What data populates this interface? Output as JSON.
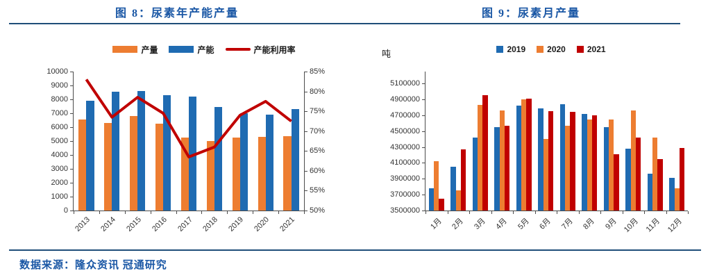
{
  "footer": {
    "source_text": "数据来源：隆众资讯 冠通研究"
  },
  "colors": {
    "production_orange": "#ED7D31",
    "capacity_blue": "#1F6BB2",
    "utilization_red": "#C00000",
    "rule_dark_blue": "#1F4E79",
    "title_blue": "#1A57A5"
  },
  "chart_data": [
    {
      "id": "figure8",
      "type": "bar+line",
      "title": "图 8：尿素年产能产量",
      "categories": [
        "2013",
        "2014",
        "2015",
        "2016",
        "2017",
        "2018",
        "2019",
        "2020",
        "2021"
      ],
      "series": [
        {
          "name": "产量",
          "kind": "bar",
          "axis": "left",
          "color": "#ED7D31",
          "values": [
            6550,
            6300,
            6800,
            6250,
            5250,
            5000,
            5250,
            5300,
            5350
          ]
        },
        {
          "name": "产能",
          "kind": "bar",
          "axis": "left",
          "color": "#1F6BB2",
          "values": [
            7900,
            8550,
            8600,
            8300,
            8200,
            7450,
            7000,
            6900,
            7300
          ]
        },
        {
          "name": "产能利用率",
          "kind": "line",
          "axis": "right",
          "color": "#C00000",
          "values": [
            83,
            73.5,
            78.5,
            74.5,
            63.5,
            66,
            74,
            77.5,
            72.5
          ]
        }
      ],
      "left_axis": {
        "min": 0,
        "max": 10000,
        "step": 1000
      },
      "right_axis": {
        "min": 50,
        "max": 85,
        "step": 5,
        "format": "percent"
      },
      "legend_position": "top",
      "gridlines": false,
      "bar_width_ratio": 0.3,
      "legend_swatch": "rect"
    },
    {
      "id": "figure9",
      "type": "bar",
      "title": "图 9：尿素月产量",
      "unit": "吨",
      "categories": [
        "1月",
        "2月",
        "3月",
        "4月",
        "5月",
        "6月",
        "7月",
        "8月",
        "9月",
        "10月",
        "11月",
        "12月"
      ],
      "series": [
        {
          "name": "2019",
          "kind": "bar",
          "axis": "left",
          "color": "#1F6BB2",
          "values": [
            3780000,
            4050000,
            4420000,
            4550000,
            4820000,
            4790000,
            4840000,
            4720000,
            4550000,
            4280000,
            3960000,
            3910000
          ]
        },
        {
          "name": "2020",
          "kind": "bar",
          "axis": "left",
          "color": "#ED7D31",
          "values": [
            4120000,
            3750000,
            4830000,
            4760000,
            4900000,
            4400000,
            4570000,
            4650000,
            4650000,
            4760000,
            4420000,
            3780000
          ]
        },
        {
          "name": "2021",
          "kind": "bar",
          "axis": "left",
          "color": "#C00000",
          "values": [
            3650000,
            4270000,
            4950000,
            4570000,
            4910000,
            4750000,
            4740000,
            4700000,
            4210000,
            4420000,
            4150000,
            4290000
          ]
        }
      ],
      "left_axis": {
        "min": 3500000,
        "max": 5100000,
        "step": 200000,
        "display_max": 5250000
      },
      "legend_position": "top",
      "gridlines": false,
      "bar_width_ratio": 0.235,
      "legend_swatch": "square"
    }
  ]
}
